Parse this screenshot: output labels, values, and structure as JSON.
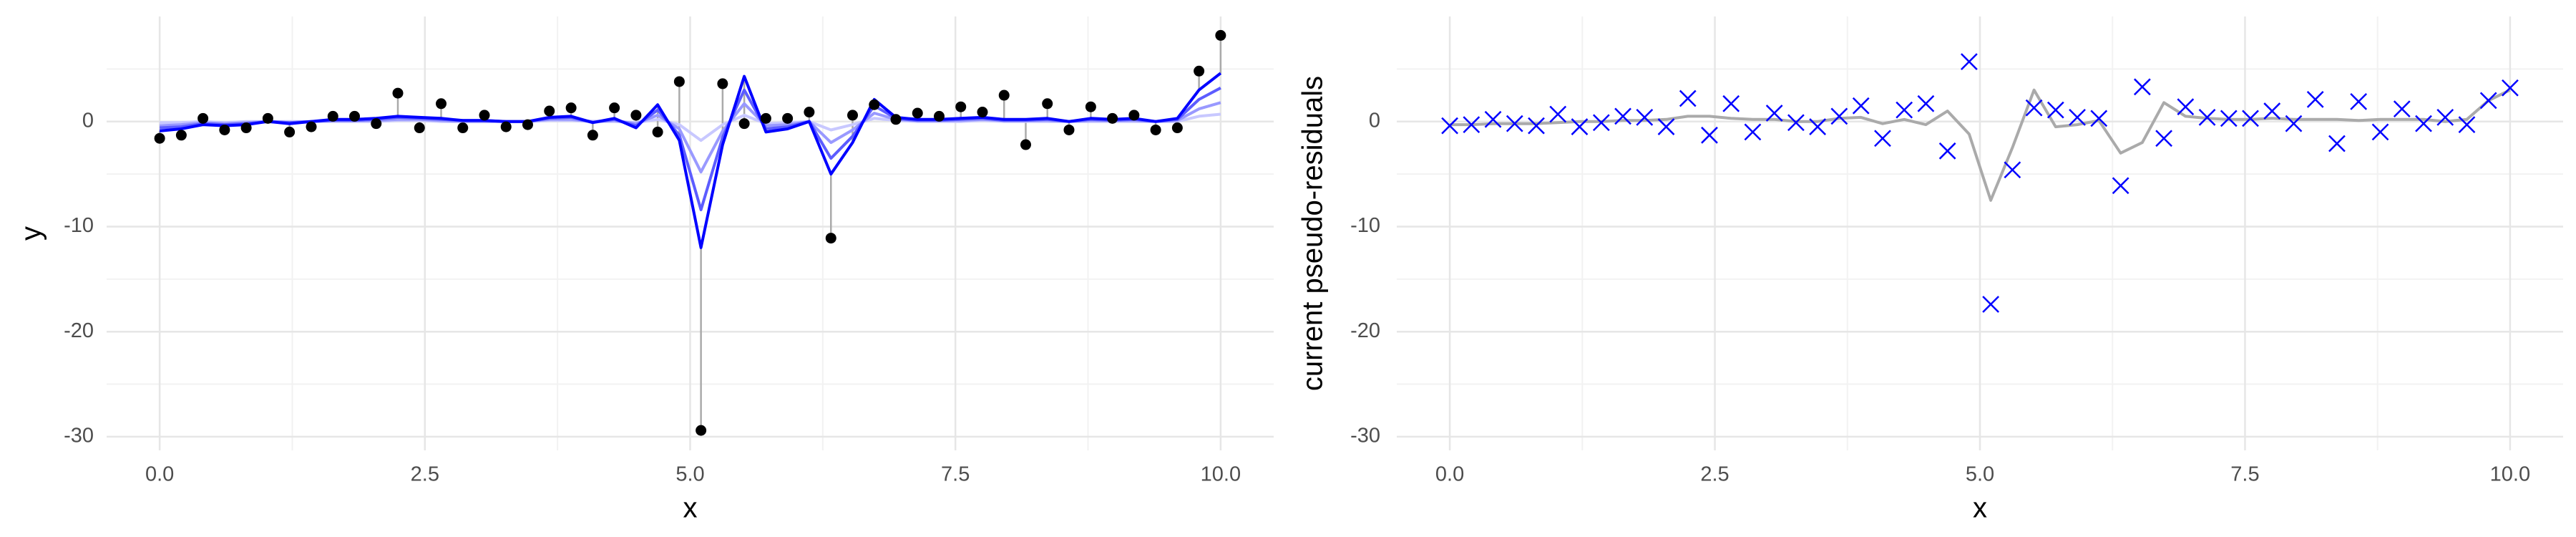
{
  "chart_data": [
    {
      "type": "scatter",
      "xlabel": "x",
      "ylabel": "y",
      "marker": "o",
      "color": "#000000",
      "segments": true,
      "segment_color": "#aaaaaa",
      "grid": true,
      "xlim": [
        -0.5,
        10.5
      ],
      "ylim": [
        -31.3,
        10
      ],
      "xticks": [
        {
          "value": 0,
          "label": "0.0"
        },
        2.5,
        {
          "value": 5,
          "label": "5.0"
        },
        7.5,
        {
          "value": 10,
          "label": "10.0"
        }
      ],
      "yticks": [
        -30,
        -20,
        -10,
        0
      ],
      "x": [
        0,
        0.204,
        0.408,
        0.612,
        0.816,
        1.02,
        1.224,
        1.429,
        1.633,
        1.837,
        2.041,
        2.245,
        2.449,
        2.653,
        2.857,
        3.061,
        3.265,
        3.469,
        3.673,
        3.878,
        4.082,
        4.286,
        4.49,
        4.694,
        4.898,
        5.102,
        5.306,
        5.51,
        5.714,
        5.918,
        6.122,
        6.327,
        6.531,
        6.735,
        6.939,
        7.143,
        7.347,
        7.551,
        7.755,
        7.959,
        8.163,
        8.367,
        8.571,
        8.776,
        8.98,
        9.184,
        9.388,
        9.592,
        9.796,
        10
      ],
      "values": [
        -1.6,
        -1.3,
        0.3,
        -0.8,
        -0.6,
        0.3,
        -1.0,
        -0.5,
        0.5,
        0.5,
        -0.2,
        2.7,
        -0.6,
        1.7,
        -0.6,
        0.6,
        -0.5,
        -0.3,
        1.0,
        1.3,
        -1.3,
        1.3,
        0.6,
        -1.0,
        3.8,
        -29.4,
        3.6,
        -0.2,
        0.3,
        0.3,
        0.9,
        -11.1,
        0.6,
        1.6,
        0.2,
        0.8,
        0.5,
        1.4,
        0.9,
        2.5,
        -2.2,
        1.7,
        -0.8,
        1.4,
        0.3,
        0.6,
        -0.8,
        -0.6,
        4.8,
        8.2
      ],
      "series": [
        {
          "color": "#c8c8ff",
          "values": [
            -0.1,
            -0.1,
            0,
            -0.1,
            0,
            0,
            0,
            0,
            0,
            0,
            0,
            0.1,
            0.1,
            0,
            0,
            0,
            0,
            0,
            0.1,
            0.1,
            0,
            0,
            -0.1,
            0.2,
            -0.3,
            -1.8,
            -0.3,
            0.6,
            -0.2,
            -0.1,
            0,
            -0.8,
            -0.3,
            0.3,
            0.1,
            0,
            0,
            0,
            0.1,
            0,
            0,
            0,
            0,
            0,
            0,
            0,
            0,
            0,
            0.5,
            0.7
          ]
        },
        {
          "color": "#9999ff",
          "values": [
            -0.4,
            -0.3,
            -0.1,
            -0.2,
            -0.1,
            0,
            -0.1,
            0,
            0.1,
            0.1,
            0.1,
            0.2,
            0.2,
            0.1,
            0,
            0,
            0,
            0,
            0.2,
            0.2,
            0,
            0.1,
            -0.2,
            0.6,
            -0.7,
            -4.8,
            -0.9,
            1.7,
            -0.4,
            -0.3,
            0,
            -2.0,
            -0.8,
            0.8,
            0.2,
            0.1,
            0.1,
            0.1,
            0.2,
            0.1,
            0.1,
            0.1,
            0,
            0.1,
            0.1,
            0.1,
            0,
            0.1,
            1.2,
            1.8
          ]
        },
        {
          "color": "#5c5cff",
          "values": [
            -0.6,
            -0.5,
            -0.2,
            -0.3,
            -0.2,
            0,
            -0.1,
            0,
            0.1,
            0.1,
            0.2,
            0.4,
            0.3,
            0.2,
            0.1,
            0.1,
            0,
            0,
            0.3,
            0.4,
            -0.1,
            0.2,
            -0.4,
            1.1,
            -1.3,
            -8.4,
            -1.5,
            3.0,
            -0.7,
            -0.5,
            0,
            -3.5,
            -1.4,
            1.5,
            0.3,
            0.1,
            0.1,
            0.2,
            0.3,
            0.1,
            0.1,
            0.2,
            0,
            0.2,
            0.1,
            0.2,
            0,
            0.2,
            2.1,
            3.2
          ]
        },
        {
          "color": "#0000ff",
          "values": [
            -0.9,
            -0.7,
            -0.3,
            -0.4,
            -0.3,
            0,
            -0.2,
            0,
            0.2,
            0.2,
            0.3,
            0.5,
            0.4,
            0.3,
            0.1,
            0.1,
            0,
            0,
            0.4,
            0.5,
            -0.1,
            0.3,
            -0.6,
            1.6,
            -1.8,
            -12.0,
            -2.2,
            4.3,
            -1.0,
            -0.7,
            0,
            -5.0,
            -2.0,
            2.1,
            0.4,
            0.2,
            0.2,
            0.3,
            0.4,
            0.2,
            0.2,
            0.3,
            0,
            0.3,
            0.2,
            0.3,
            0,
            0.3,
            3.0,
            4.6
          ]
        }
      ]
    },
    {
      "type": "scatter",
      "xlabel": "x",
      "ylabel": "current pseudo-residuals",
      "marker": "x",
      "color": "#0000ff",
      "segments": false,
      "grid": true,
      "xlim": [
        -0.5,
        10.5
      ],
      "ylim": [
        -31.3,
        10
      ],
      "xticks": [
        {
          "value": 0,
          "label": "0.0"
        },
        2.5,
        {
          "value": 5,
          "label": "5.0"
        },
        7.5,
        {
          "value": 10,
          "label": "10.0"
        }
      ],
      "yticks": [
        -30,
        -20,
        -10,
        0
      ],
      "x": [
        0,
        0.204,
        0.408,
        0.612,
        0.816,
        1.02,
        1.224,
        1.429,
        1.633,
        1.837,
        2.041,
        2.245,
        2.449,
        2.653,
        2.857,
        3.061,
        3.265,
        3.469,
        3.673,
        3.878,
        4.082,
        4.286,
        4.49,
        4.694,
        4.898,
        5.102,
        5.306,
        5.51,
        5.714,
        5.918,
        6.122,
        6.327,
        6.531,
        6.735,
        6.939,
        7.143,
        7.347,
        7.551,
        7.755,
        7.959,
        8.163,
        8.367,
        8.571,
        8.776,
        8.98,
        9.184,
        9.388,
        9.592,
        9.796,
        10
      ],
      "values": [
        -0.4,
        -0.3,
        0.2,
        -0.2,
        -0.4,
        0.7,
        -0.5,
        -0.1,
        0.5,
        0.4,
        -0.5,
        2.2,
        -1.3,
        1.7,
        -1.0,
        0.8,
        -0.1,
        -0.5,
        0.5,
        1.5,
        -1.6,
        1.1,
        1.7,
        -2.8,
        5.7,
        -17.4,
        -4.6,
        1.3,
        1.1,
        0.4,
        0.3,
        -6.1,
        3.3,
        -1.6,
        1.4,
        0.4,
        0.3,
        0.3,
        1.0,
        -0.2,
        2.1,
        -2.1,
        1.9,
        -1.0,
        1.2,
        -0.2,
        0.4,
        -0.3,
        2.0,
        3.2
      ],
      "series": [
        {
          "color": "#aaaaaa",
          "values": [
            -0.3,
            -0.3,
            -0.2,
            -0.2,
            -0.2,
            -0.1,
            0,
            0,
            0.1,
            0.1,
            0.2,
            0.5,
            0.5,
            0.3,
            0.2,
            0.2,
            0,
            0,
            0.3,
            0.4,
            -0.2,
            0.2,
            -0.3,
            1.0,
            -1.2,
            -7.5,
            -2.5,
            3.0,
            -0.5,
            -0.3,
            0.1,
            -3.0,
            -2.0,
            1.8,
            0.5,
            0.3,
            0.2,
            0.2,
            0.3,
            0.2,
            0.2,
            0.2,
            0.1,
            0.2,
            0.2,
            0.2,
            0,
            0.2,
            2.0,
            3.0
          ]
        }
      ]
    }
  ]
}
